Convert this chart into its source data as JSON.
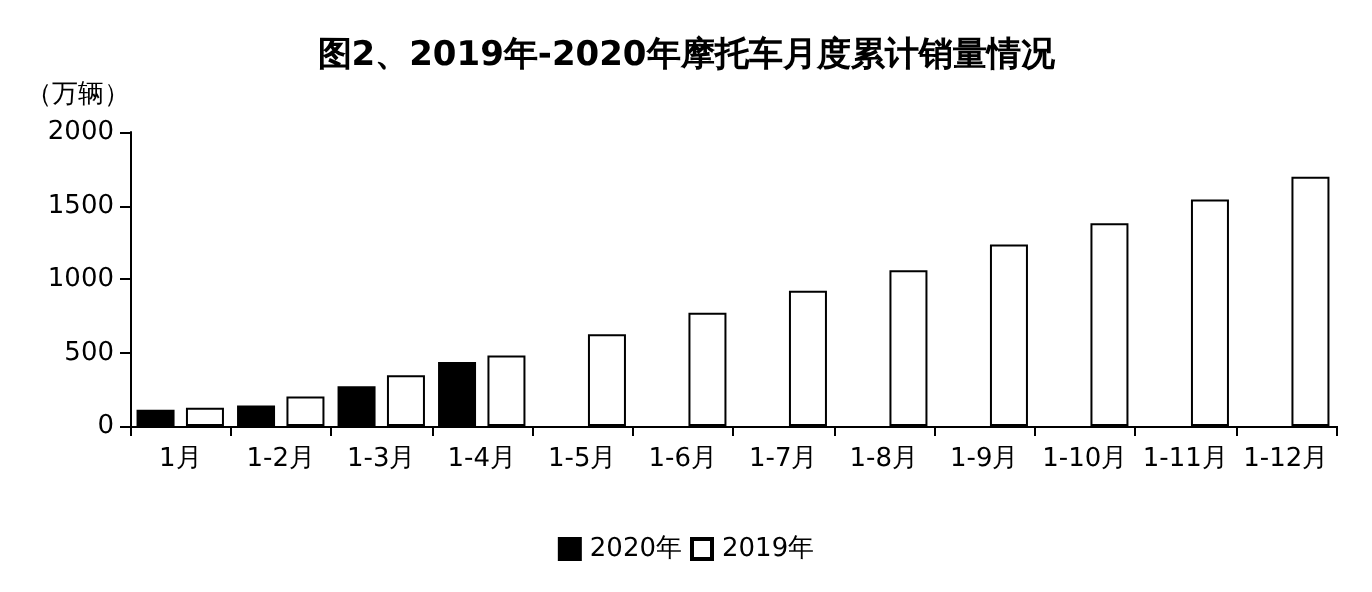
{
  "chart_data": {
    "type": "bar",
    "title": "图2、2019年-2020年摩托车月度累计销量情况",
    "ylabel": "（万辆）",
    "categories": [
      "1月",
      "1-2月",
      "1-3月",
      "1-4月",
      "1-5月",
      "1-6月",
      "1-7月",
      "1-8月",
      "1-9月",
      "1-10月",
      "1-11月",
      "1-12月"
    ],
    "series": [
      {
        "name": "2020年",
        "color": "#000000",
        "values": [
          110,
          140,
          270,
          435,
          null,
          null,
          null,
          null,
          null,
          null,
          null,
          null
        ]
      },
      {
        "name": "2019年",
        "color": "#ffffff",
        "values": [
          125,
          200,
          345,
          480,
          625,
          770,
          920,
          1060,
          1235,
          1380,
          1540,
          1695
        ]
      }
    ],
    "ylim": [
      0,
      2000
    ],
    "yticks": [
      0,
      500,
      1000,
      1500,
      2000
    ],
    "grid": false,
    "legend": "bottom"
  }
}
